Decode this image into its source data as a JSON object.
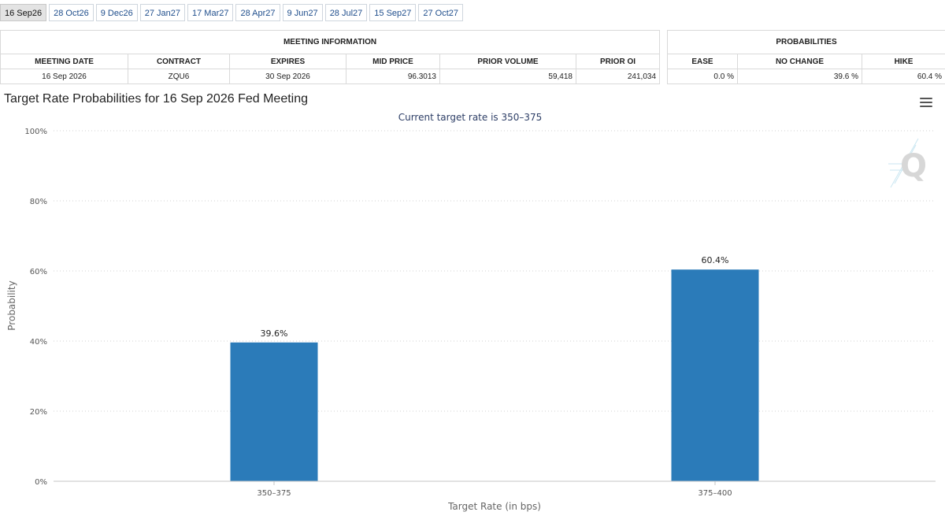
{
  "tabs": [
    {
      "label": "16 Sep26",
      "active": true
    },
    {
      "label": "28 Oct26",
      "active": false
    },
    {
      "label": "9 Dec26",
      "active": false
    },
    {
      "label": "27 Jan27",
      "active": false
    },
    {
      "label": "17 Mar27",
      "active": false
    },
    {
      "label": "28 Apr27",
      "active": false
    },
    {
      "label": "9 Jun27",
      "active": false
    },
    {
      "label": "28 Jul27",
      "active": false
    },
    {
      "label": "15 Sep27",
      "active": false
    },
    {
      "label": "27 Oct27",
      "active": false
    }
  ],
  "meeting_info": {
    "header": "MEETING INFORMATION",
    "columns": [
      "MEETING DATE",
      "CONTRACT",
      "EXPIRES",
      "MID PRICE",
      "PRIOR VOLUME",
      "PRIOR OI"
    ],
    "row": {
      "meeting_date": "16 Sep 2026",
      "contract": "ZQU6",
      "expires": "30 Sep 2026",
      "mid_price": "96.3013",
      "prior_volume": "59,418",
      "prior_oi": "241,034"
    }
  },
  "probabilities": {
    "header": "PROBABILITIES",
    "columns": [
      "EASE",
      "NO CHANGE",
      "HIKE"
    ],
    "row": {
      "ease": "0.0 %",
      "no_change": "39.6 %",
      "hike": "60.4 %"
    }
  },
  "chart_data": {
    "type": "bar",
    "title": "Target Rate Probabilities for 16 Sep 2026 Fed Meeting",
    "subtitle": "Current target rate is 350–375",
    "xlabel": "Target Rate (in bps)",
    "ylabel": "Probability",
    "categories": [
      "350–375",
      "375–400"
    ],
    "values": [
      39.6,
      60.4
    ],
    "data_labels": [
      "39.6%",
      "60.4%"
    ],
    "ylim": [
      0,
      100
    ],
    "yticks": [
      0,
      20,
      40,
      60,
      80,
      100
    ],
    "ytick_labels": [
      "0%",
      "20%",
      "40%",
      "60%",
      "80%",
      "100%"
    ],
    "grid": true,
    "bar_color": "#2b7bb9",
    "subtitle_color": "#2d3e66"
  },
  "icons": {
    "menu": "hamburger-menu-icon",
    "watermark": "quikstrike-q-logo"
  }
}
